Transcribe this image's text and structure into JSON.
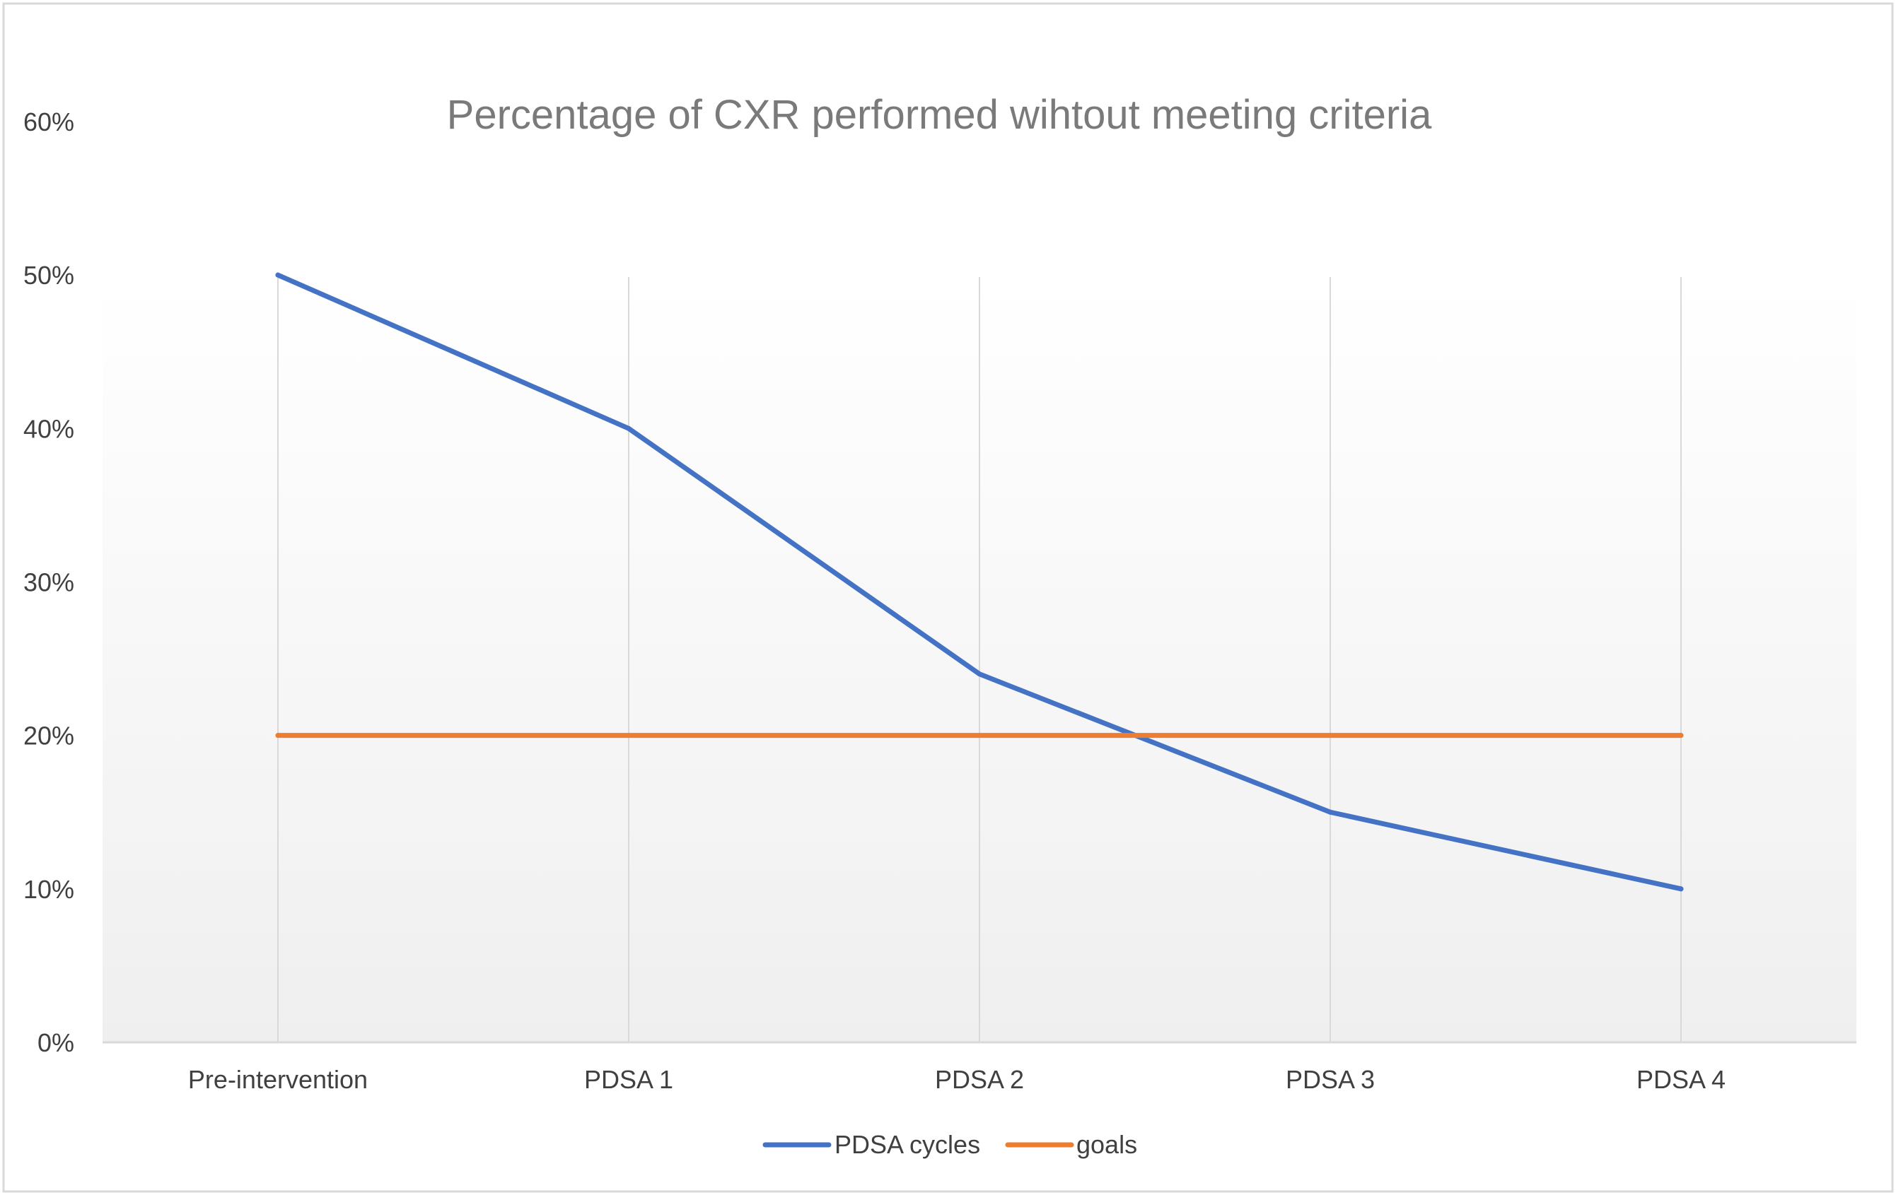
{
  "chart_data": {
    "type": "line",
    "title": "Percentage of CXR performed wihtout meeting criteria",
    "xlabel": "",
    "ylabel": "",
    "categories": [
      "Pre-intervention",
      "PDSA 1",
      "PDSA 2",
      "PDSA 3",
      "PDSA 4"
    ],
    "y_ticks": [
      "0%",
      "10%",
      "20%",
      "30%",
      "40%",
      "50%",
      "60%"
    ],
    "ylim": [
      0,
      0.6
    ],
    "grid": "vertical",
    "legend_position": "bottom",
    "series": [
      {
        "name": "PDSA cycles",
        "values": [
          0.5,
          0.4,
          0.24,
          0.15,
          0.1
        ],
        "color": "#4472c4"
      },
      {
        "name": "goals",
        "values": [
          0.2,
          0.2,
          0.2,
          0.2,
          0.2
        ],
        "color": "#ed7d31"
      }
    ]
  }
}
